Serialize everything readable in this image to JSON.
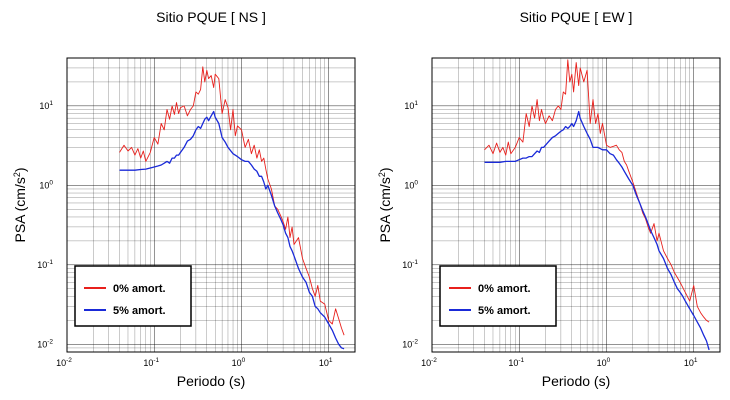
{
  "chart_data": [
    {
      "type": "line",
      "title": "Sitio PQUE [ NS ]",
      "xlabel": "Periodo (s)",
      "ylabel": "PSA (cm/s",
      "ylabel_sup": "2",
      "ylabel_tail": ")",
      "x_scale": "log",
      "y_scale": "log",
      "xlim": [
        0.01,
        20
      ],
      "ylim": [
        0.008,
        40
      ],
      "grid": true,
      "legend_position": "bottom-left",
      "x_ticks": [
        {
          "base": "10",
          "exp": "-2",
          "value": 0.01
        },
        {
          "base": "10",
          "exp": "-1",
          "value": 0.1
        },
        {
          "base": "10",
          "exp": "0",
          "value": 1
        },
        {
          "base": "10",
          "exp": "1",
          "value": 10
        }
      ],
      "y_ticks": [
        {
          "base": "10",
          "exp": "-2",
          "value": 0.01
        },
        {
          "base": "10",
          "exp": "-1",
          "value": 0.1
        },
        {
          "base": "10",
          "exp": "0",
          "value": 1
        },
        {
          "base": "10",
          "exp": "1",
          "value": 10
        }
      ],
      "series": [
        {
          "name": "0% amort.",
          "color": "#e8201c",
          "x": [
            0.04,
            0.045,
            0.05,
            0.055,
            0.06,
            0.065,
            0.07,
            0.075,
            0.08,
            0.09,
            0.1,
            0.11,
            0.12,
            0.13,
            0.14,
            0.15,
            0.16,
            0.17,
            0.18,
            0.19,
            0.2,
            0.22,
            0.24,
            0.26,
            0.28,
            0.3,
            0.32,
            0.34,
            0.36,
            0.38,
            0.4,
            0.42,
            0.45,
            0.48,
            0.5,
            0.55,
            0.6,
            0.65,
            0.7,
            0.75,
            0.8,
            0.85,
            0.9,
            1.0,
            1.1,
            1.2,
            1.3,
            1.4,
            1.5,
            1.6,
            1.7,
            1.8,
            1.9,
            2.0,
            2.2,
            2.4,
            2.6,
            2.8,
            3.0,
            3.2,
            3.4,
            3.6,
            3.8,
            4.0,
            4.5,
            5.0,
            5.5,
            6.0,
            6.5,
            7.0,
            7.5,
            8.0,
            9.0,
            10.0,
            11.0,
            12.0,
            13.0,
            14.0,
            15.0
          ],
          "y": [
            2.6,
            3.2,
            2.7,
            3.0,
            2.4,
            2.9,
            2.2,
            2.7,
            2.0,
            2.6,
            4.0,
            3.3,
            6.0,
            5.0,
            9.0,
            6.8,
            10.0,
            7.8,
            11.0,
            8.0,
            9.5,
            10.0,
            7.5,
            9.0,
            10.0,
            15.0,
            14.0,
            16.0,
            31.0,
            20.0,
            28.0,
            22.0,
            24.0,
            17.0,
            25.0,
            22.0,
            8.0,
            12.0,
            9.5,
            5.0,
            9.0,
            4.2,
            5.6,
            5.0,
            3.0,
            3.8,
            2.5,
            3.2,
            2.2,
            2.8,
            2.0,
            2.2,
            1.6,
            1.2,
            0.9,
            0.55,
            0.5,
            0.42,
            0.35,
            0.28,
            0.4,
            0.22,
            0.3,
            0.18,
            0.22,
            0.12,
            0.09,
            0.07,
            0.05,
            0.04,
            0.055,
            0.035,
            0.032,
            0.02,
            0.018,
            0.028,
            0.021,
            0.016,
            0.013
          ]
        },
        {
          "name": "5% amort.",
          "color": "#1a2ad8",
          "x": [
            0.04,
            0.05,
            0.06,
            0.07,
            0.08,
            0.09,
            0.1,
            0.11,
            0.12,
            0.13,
            0.14,
            0.15,
            0.16,
            0.17,
            0.18,
            0.19,
            0.2,
            0.22,
            0.24,
            0.26,
            0.28,
            0.3,
            0.32,
            0.34,
            0.36,
            0.38,
            0.4,
            0.42,
            0.45,
            0.48,
            0.5,
            0.55,
            0.6,
            0.65,
            0.7,
            0.8,
            0.9,
            1.0,
            1.1,
            1.2,
            1.3,
            1.4,
            1.5,
            1.6,
            1.7,
            1.8,
            1.9,
            2.0,
            2.2,
            2.4,
            2.6,
            2.8,
            3.0,
            3.2,
            3.4,
            3.6,
            3.8,
            4.0,
            4.5,
            5.0,
            5.5,
            6.0,
            6.5,
            7.0,
            7.5,
            8.0,
            9.0,
            10.0,
            11.0,
            12.0,
            13.0,
            14.0,
            15.0
          ],
          "y": [
            1.55,
            1.55,
            1.55,
            1.58,
            1.6,
            1.65,
            1.7,
            1.75,
            1.8,
            1.9,
            2.0,
            1.9,
            2.2,
            2.2,
            2.4,
            2.4,
            2.6,
            3.0,
            3.6,
            3.8,
            4.2,
            5.0,
            5.5,
            5.2,
            6.0,
            6.8,
            7.2,
            6.5,
            7.5,
            8.5,
            7.2,
            6.0,
            4.0,
            3.5,
            3.0,
            2.5,
            2.3,
            2.1,
            2.0,
            2.0,
            1.8,
            1.6,
            1.5,
            1.3,
            1.3,
            1.1,
            0.9,
            1.0,
            0.75,
            0.55,
            0.45,
            0.38,
            0.32,
            0.25,
            0.22,
            0.17,
            0.15,
            0.13,
            0.09,
            0.07,
            0.06,
            0.045,
            0.04,
            0.03,
            0.028,
            0.025,
            0.022,
            0.018,
            0.015,
            0.012,
            0.01,
            0.009,
            0.0088
          ]
        }
      ]
    },
    {
      "type": "line",
      "title": "Sitio PQUE [ EW ]",
      "xlabel": "Periodo (s)",
      "ylabel": "PSA (cm/s",
      "ylabel_sup": "2",
      "ylabel_tail": ")",
      "x_scale": "log",
      "y_scale": "log",
      "xlim": [
        0.01,
        20
      ],
      "ylim": [
        0.008,
        40
      ],
      "grid": true,
      "legend_position": "bottom-left",
      "x_ticks": [
        {
          "base": "10",
          "exp": "-2",
          "value": 0.01
        },
        {
          "base": "10",
          "exp": "-1",
          "value": 0.1
        },
        {
          "base": "10",
          "exp": "0",
          "value": 1
        },
        {
          "base": "10",
          "exp": "1",
          "value": 10
        }
      ],
      "y_ticks": [
        {
          "base": "10",
          "exp": "-2",
          "value": 0.01
        },
        {
          "base": "10",
          "exp": "-1",
          "value": 0.1
        },
        {
          "base": "10",
          "exp": "0",
          "value": 1
        },
        {
          "base": "10",
          "exp": "1",
          "value": 10
        }
      ],
      "series": [
        {
          "name": "0% amort.",
          "color": "#e8201c",
          "x": [
            0.04,
            0.045,
            0.05,
            0.055,
            0.06,
            0.065,
            0.07,
            0.075,
            0.08,
            0.09,
            0.1,
            0.11,
            0.12,
            0.13,
            0.14,
            0.15,
            0.16,
            0.17,
            0.18,
            0.19,
            0.2,
            0.22,
            0.24,
            0.26,
            0.28,
            0.3,
            0.32,
            0.34,
            0.36,
            0.38,
            0.4,
            0.42,
            0.45,
            0.48,
            0.5,
            0.55,
            0.6,
            0.65,
            0.7,
            0.75,
            0.8,
            0.85,
            0.9,
            1.0,
            1.1,
            1.2,
            1.3,
            1.4,
            1.5,
            1.6,
            1.7,
            1.8,
            2.0,
            2.2,
            2.4,
            2.6,
            2.8,
            3.0,
            3.2,
            3.5,
            3.8,
            4.0,
            4.5,
            5.0,
            5.5,
            6.0,
            7.0,
            8.0,
            9.0,
            10.0,
            11.0,
            12.0,
            13.0,
            14.0,
            15.0
          ],
          "y": [
            2.8,
            3.2,
            2.5,
            3.4,
            2.6,
            3.0,
            2.4,
            3.5,
            2.5,
            3.0,
            4.0,
            3.5,
            8.0,
            5.5,
            10.0,
            7.0,
            12.0,
            6.5,
            9.0,
            7.0,
            6.0,
            7.5,
            6.5,
            9.0,
            10.0,
            9.0,
            15.0,
            14.0,
            38.0,
            20.0,
            25.0,
            15.0,
            35.0,
            18.0,
            30.0,
            20.0,
            28.0,
            6.0,
            12.0,
            6.0,
            8.0,
            4.5,
            6.0,
            3.2,
            3.0,
            3.1,
            3.2,
            2.8,
            2.6,
            2.0,
            1.8,
            1.5,
            1.1,
            0.8,
            0.6,
            0.45,
            0.38,
            0.3,
            0.25,
            0.33,
            0.2,
            0.25,
            0.15,
            0.12,
            0.1,
            0.08,
            0.06,
            0.045,
            0.035,
            0.055,
            0.03,
            0.025,
            0.022,
            0.02,
            0.019
          ]
        },
        {
          "name": "5% amort.",
          "color": "#1a2ad8",
          "x": [
            0.04,
            0.05,
            0.06,
            0.07,
            0.08,
            0.09,
            0.1,
            0.11,
            0.12,
            0.13,
            0.14,
            0.15,
            0.16,
            0.17,
            0.18,
            0.19,
            0.2,
            0.22,
            0.24,
            0.26,
            0.28,
            0.3,
            0.32,
            0.34,
            0.36,
            0.38,
            0.4,
            0.42,
            0.45,
            0.48,
            0.5,
            0.55,
            0.6,
            0.65,
            0.7,
            0.8,
            0.9,
            1.0,
            1.1,
            1.2,
            1.3,
            1.4,
            1.5,
            1.6,
            1.8,
            2.0,
            2.2,
            2.4,
            2.6,
            2.8,
            3.0,
            3.2,
            3.5,
            3.8,
            4.0,
            4.5,
            5.0,
            5.5,
            6.0,
            6.5,
            7.0,
            7.5,
            8.0,
            9.0,
            10.0,
            11.0,
            12.0,
            13.0,
            14.0,
            15.0
          ],
          "y": [
            1.95,
            1.95,
            1.95,
            2.0,
            2.0,
            2.0,
            2.1,
            2.2,
            2.2,
            2.3,
            2.3,
            2.5,
            2.7,
            2.6,
            3.0,
            3.0,
            3.2,
            3.6,
            4.0,
            4.2,
            4.5,
            4.8,
            5.0,
            5.5,
            5.2,
            5.5,
            6.0,
            5.5,
            6.5,
            8.5,
            7.0,
            5.5,
            4.5,
            3.8,
            3.0,
            3.0,
            2.8,
            2.8,
            2.5,
            2.4,
            2.1,
            1.9,
            1.7,
            1.5,
            1.2,
            1.0,
            0.75,
            0.6,
            0.48,
            0.4,
            0.33,
            0.27,
            0.22,
            0.18,
            0.15,
            0.12,
            0.09,
            0.075,
            0.06,
            0.05,
            0.045,
            0.04,
            0.035,
            0.028,
            0.023,
            0.019,
            0.016,
            0.013,
            0.011,
            0.0085
          ]
        }
      ]
    }
  ]
}
